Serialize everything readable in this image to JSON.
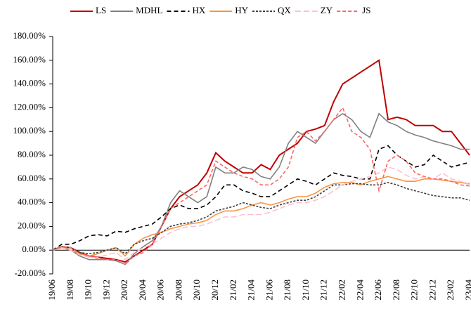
{
  "chart_data": {
    "type": "line",
    "categories": [
      "19/06",
      null,
      "19/08",
      null,
      "19/10",
      null,
      "19/12",
      null,
      "20/02",
      null,
      "20/04",
      null,
      "20/06",
      null,
      "20/08",
      null,
      "20/10",
      null,
      "20/12",
      null,
      "21/02",
      null,
      "21/04",
      null,
      "21/06",
      null,
      "21/08",
      null,
      "21/10",
      null,
      "21/12",
      null,
      "22/02",
      null,
      "22/04",
      null,
      "22/06",
      null,
      "22/08",
      null,
      "22/10",
      null,
      "22/12",
      null,
      "23/02",
      null,
      "23/04"
    ],
    "series": [
      {
        "name": "LS",
        "color": "#c00000",
        "dash": "none",
        "values": [
          0,
          3,
          2,
          -2,
          -5,
          -6,
          -7,
          -8,
          -10,
          -5,
          0,
          5,
          20,
          35,
          45,
          50,
          55,
          65,
          82,
          75,
          70,
          65,
          65,
          72,
          68,
          80,
          85,
          90,
          100,
          102,
          105,
          125,
          140,
          145,
          150,
          155,
          160,
          110,
          112,
          110,
          105,
          105,
          105,
          100,
          100,
          90,
          80
        ]
      },
      {
        "name": "MDHL",
        "color": "#808080",
        "dash": "none",
        "values": [
          0,
          3,
          0,
          -5,
          -8,
          -8,
          -8,
          -9,
          -12,
          -3,
          3,
          8,
          20,
          40,
          50,
          45,
          40,
          45,
          70,
          65,
          65,
          70,
          68,
          62,
          60,
          70,
          90,
          100,
          95,
          90,
          100,
          110,
          115,
          110,
          100,
          95,
          115,
          108,
          105,
          100,
          97,
          95,
          92,
          90,
          88,
          85,
          85
        ]
      },
      {
        "name": "HX",
        "color": "#000000",
        "dash": "6 4",
        "values": [
          0,
          5,
          5,
          8,
          12,
          13,
          12,
          16,
          15,
          18,
          20,
          22,
          28,
          35,
          38,
          35,
          35,
          38,
          45,
          55,
          55,
          50,
          48,
          45,
          45,
          50,
          55,
          60,
          58,
          55,
          60,
          65,
          63,
          62,
          60,
          60,
          85,
          88,
          80,
          75,
          70,
          72,
          80,
          75,
          70,
          72,
          74
        ]
      },
      {
        "name": "HY",
        "color": "#f79646",
        "dash": "none",
        "values": [
          0,
          2,
          0,
          -3,
          -5,
          -3,
          0,
          2,
          -5,
          5,
          10,
          13,
          15,
          18,
          20,
          22,
          23,
          25,
          30,
          33,
          33,
          35,
          38,
          40,
          38,
          40,
          43,
          45,
          45,
          48,
          53,
          56,
          57,
          57,
          55,
          58,
          60,
          62,
          60,
          58,
          58,
          60,
          60,
          59,
          58,
          57,
          56
        ]
      },
      {
        "name": "QX",
        "color": "#404040",
        "dash": "3 2",
        "values": [
          0,
          3,
          2,
          -2,
          -3,
          -2,
          0,
          2,
          -3,
          5,
          8,
          10,
          15,
          20,
          22,
          23,
          25,
          28,
          33,
          35,
          37,
          40,
          38,
          36,
          35,
          38,
          40,
          42,
          42,
          45,
          50,
          55,
          55,
          56,
          56,
          55,
          55,
          57,
          55,
          52,
          50,
          48,
          46,
          45,
          44,
          44,
          42
        ]
      },
      {
        "name": "ZY",
        "color": "#ffc0cb",
        "dash": "8 4",
        "values": [
          0,
          2,
          0,
          -4,
          -6,
          -6,
          -4,
          -2,
          -8,
          -2,
          2,
          5,
          10,
          15,
          18,
          20,
          20,
          22,
          25,
          28,
          28,
          30,
          30,
          30,
          32,
          35,
          38,
          40,
          40,
          42,
          45,
          50,
          55,
          58,
          60,
          62,
          65,
          70,
          68,
          63,
          60,
          62,
          60,
          65,
          60,
          58,
          55
        ]
      },
      {
        "name": "JS",
        "color": "#ff6666",
        "dash": "5 3",
        "values": [
          0,
          3,
          2,
          -3,
          -5,
          -7,
          -8,
          -8,
          -12,
          -5,
          -2,
          5,
          20,
          35,
          40,
          45,
          50,
          55,
          75,
          70,
          65,
          62,
          60,
          55,
          55,
          60,
          70,
          95,
          100,
          92,
          100,
          110,
          120,
          100,
          95,
          85,
          50,
          75,
          80,
          75,
          65,
          62,
          60,
          60,
          58,
          55,
          54
        ]
      }
    ],
    "ylim": [
      -20,
      180
    ],
    "yticks": [
      {
        "value": -20,
        "label": "-20.00%"
      },
      {
        "value": 0,
        "label": "0.00%"
      },
      {
        "value": 20,
        "label": "20.00%"
      },
      {
        "value": 40,
        "label": "40.00%"
      },
      {
        "value": 60,
        "label": "60.00%"
      },
      {
        "value": 80,
        "label": "80.00%"
      },
      {
        "value": 100,
        "label": "100.00%"
      },
      {
        "value": 120,
        "label": "120.00%"
      },
      {
        "value": 140,
        "label": "140.00%"
      },
      {
        "value": 160,
        "label": "160.00%"
      },
      {
        "value": 180,
        "label": "180.00%"
      }
    ],
    "legend": "top"
  }
}
